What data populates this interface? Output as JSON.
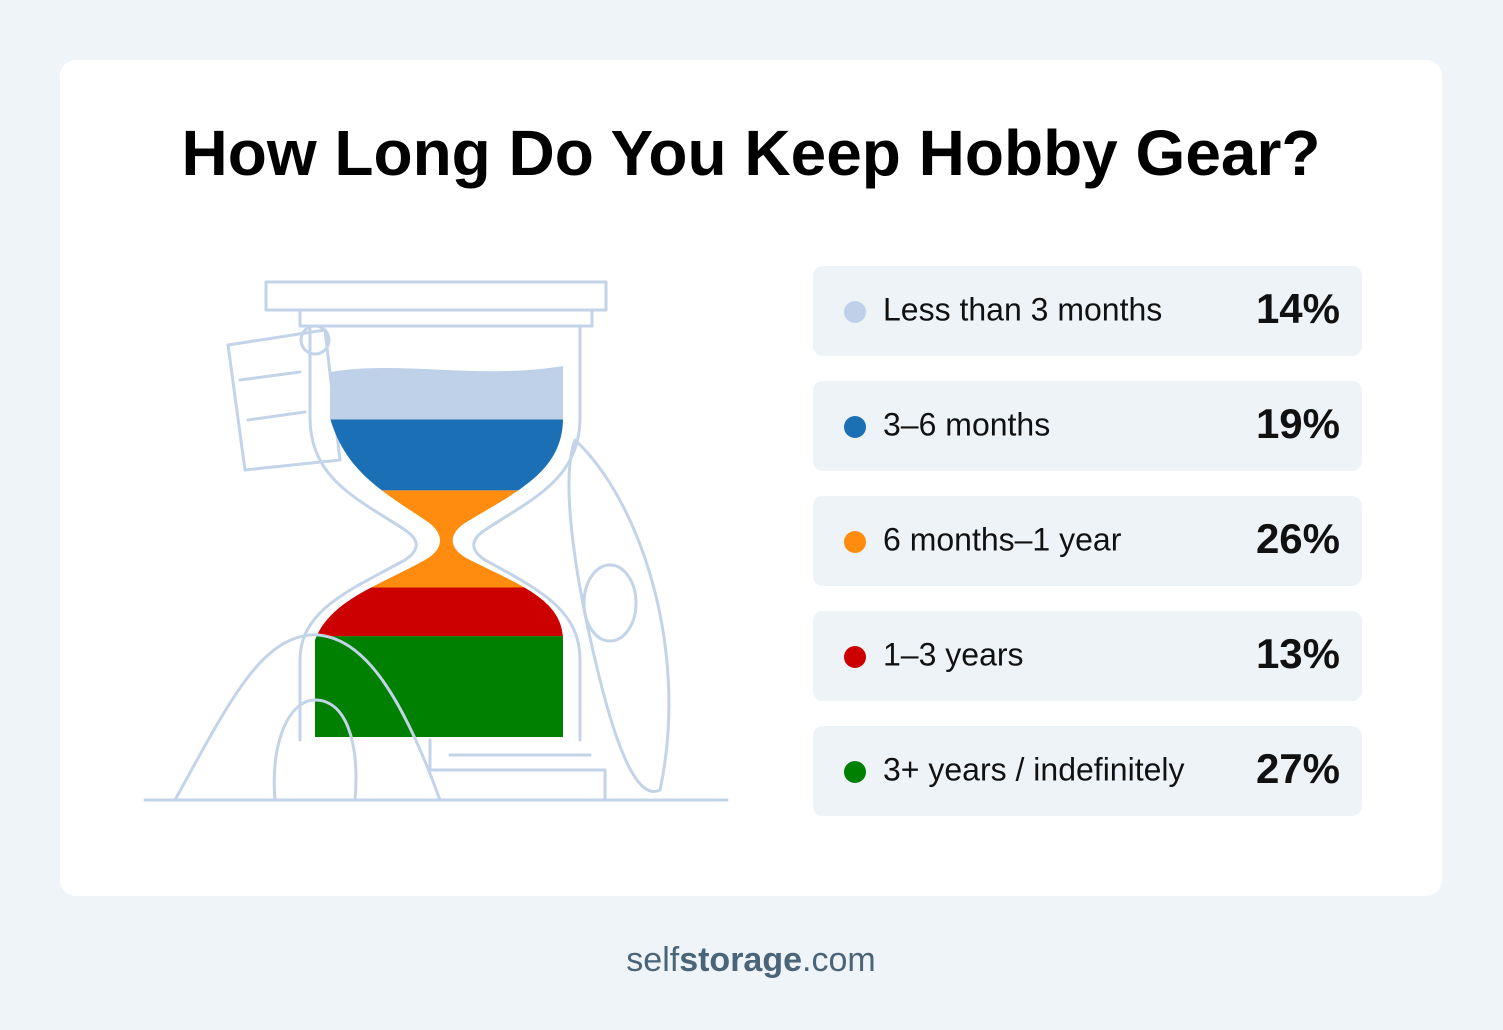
{
  "chart_data": {
    "type": "hourglass",
    "title": "How Long Do You Keep Hobby Gear?",
    "categories": [
      "Less than 3 months",
      "3–6 months",
      "6 months–1 year",
      "1–3 years",
      "3+ years / indefinitely"
    ],
    "values": [
      14,
      19,
      26,
      13,
      27
    ],
    "value_labels": [
      "14%",
      "19%",
      "26%",
      "13%",
      "27%"
    ],
    "colors": [
      "#bfd1e8",
      "#1a6fb5",
      "#ff8c0f",
      "#cc0000",
      "#008000"
    ]
  },
  "footer": {
    "parts": [
      "self",
      "storage",
      ".com"
    ]
  }
}
